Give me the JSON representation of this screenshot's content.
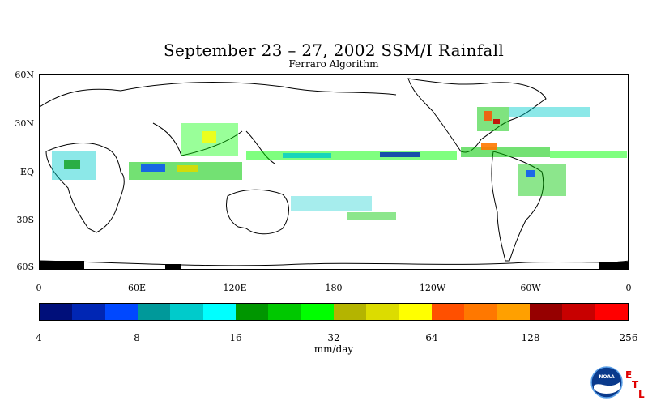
{
  "title": "September 23 – 27, 2002 SSM/I Rainfall",
  "subtitle": "Ferraro Algorithm",
  "map": {
    "lat_labels": [
      "60N",
      "30N",
      "EQ",
      "30S",
      "60S"
    ],
    "lon_labels": [
      "0",
      "60E",
      "120E",
      "180",
      "120W",
      "60W",
      "0"
    ]
  },
  "colorbar": {
    "colors": [
      "#000f7a",
      "#0026b4",
      "#0048ff",
      "#00999a",
      "#00cbcb",
      "#00ffff",
      "#009600",
      "#00c800",
      "#00ff00",
      "#b4b400",
      "#dcdc00",
      "#ffff00",
      "#ff5000",
      "#ff7800",
      "#ffa000",
      "#960000",
      "#c80000",
      "#ff0000"
    ],
    "tick_labels": [
      "4",
      "8",
      "16",
      "32",
      "64",
      "128",
      "256"
    ],
    "units": "mm/day"
  },
  "logo": {
    "agency": "NOAA",
    "letters": [
      "E",
      "T",
      "L"
    ],
    "icon": "noaa-logo-icon"
  }
}
